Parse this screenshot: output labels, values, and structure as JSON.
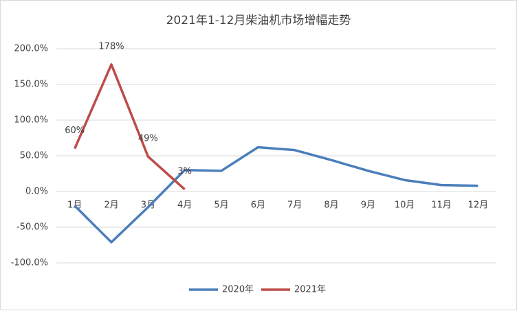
{
  "chart_data": {
    "type": "line",
    "title": "2021年1-12月柴油机市场增幅走势",
    "categories": [
      "1月",
      "2月",
      "3月",
      "4月",
      "5月",
      "6月",
      "7月",
      "8月",
      "9月",
      "10月",
      "11月",
      "12月"
    ],
    "series": [
      {
        "name": "2020年",
        "color": "#4a7ebb",
        "values": [
          -20,
          -71,
          -22,
          30,
          29,
          62,
          58,
          44,
          29,
          16,
          9,
          8
        ]
      },
      {
        "name": "2021年",
        "color": "#be4b48",
        "values": [
          60,
          178,
          49,
          3,
          null,
          null,
          null,
          null,
          null,
          null,
          null,
          null
        ],
        "value_labels": [
          "60%",
          "178%",
          "49%",
          "3%",
          null,
          null,
          null,
          null,
          null,
          null,
          null,
          null
        ]
      }
    ],
    "ylim": [
      -100,
      200
    ],
    "yticks": [
      {
        "value": -100,
        "label": "-100.0%"
      },
      {
        "value": -50,
        "label": "-50.0%"
      },
      {
        "value": 0,
        "label": "0.0%"
      },
      {
        "value": 50,
        "label": "50.0%"
      },
      {
        "value": 100,
        "label": "100.0%"
      },
      {
        "value": 150,
        "label": "150.0%"
      },
      {
        "value": 200,
        "label": "200.0%"
      }
    ],
    "grid": true,
    "legend": "bottom"
  }
}
